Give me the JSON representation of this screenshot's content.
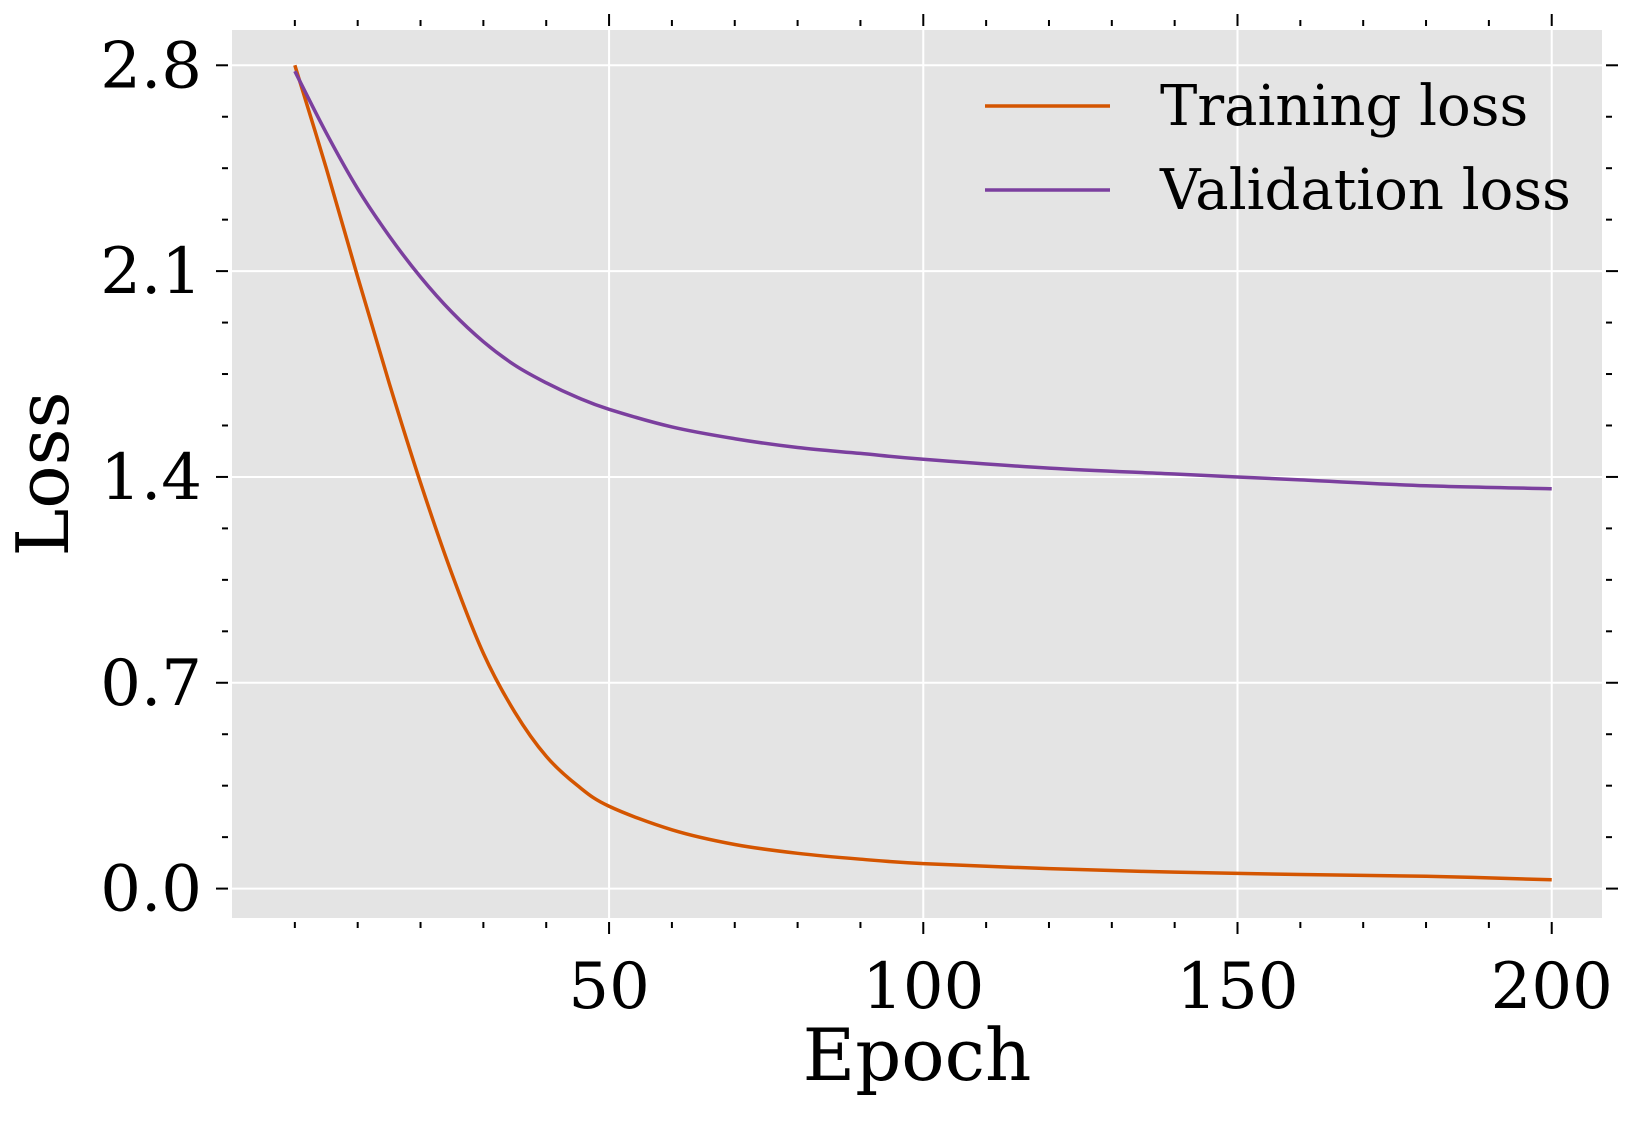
{
  "chart_data": {
    "type": "line",
    "title": "",
    "xlabel": "Epoch",
    "ylabel": "Loss",
    "xlim": [
      -10,
      208
    ],
    "ylim": [
      -0.1,
      2.92
    ],
    "xticks": [
      50,
      100,
      150,
      200
    ],
    "xtick_labels": [
      "50",
      "100",
      "150",
      "200"
    ],
    "yticks": [
      0.0,
      0.7,
      1.4,
      2.1,
      2.8
    ],
    "ytick_labels": [
      "0.0",
      "0.7",
      "1.4",
      "2.1",
      "2.8"
    ],
    "x_minor_ticks": [
      0,
      10,
      20,
      30,
      40,
      60,
      70,
      80,
      90,
      110,
      120,
      130,
      140,
      160,
      170,
      180,
      190
    ],
    "y_minor_ticks": [
      0.175,
      0.35,
      0.525,
      0.875,
      1.05,
      1.225,
      1.575,
      1.75,
      1.925,
      2.275,
      2.45,
      2.625
    ],
    "grid": true,
    "legend_position": "top-right",
    "x": [
      0,
      5,
      10,
      15,
      20,
      25,
      30,
      35,
      40,
      45,
      50,
      60,
      70,
      80,
      90,
      100,
      120,
      140,
      160,
      180,
      200
    ],
    "series": [
      {
        "name": "Training loss",
        "color": "#d45500",
        "values": [
          2.8,
          2.45,
          2.08,
          1.72,
          1.38,
          1.07,
          0.8,
          0.6,
          0.45,
          0.35,
          0.28,
          0.2,
          0.15,
          0.12,
          0.1,
          0.085,
          0.068,
          0.056,
          0.048,
          0.042,
          0.03
        ]
      },
      {
        "name": "Validation loss",
        "color": "#7b3f9e",
        "values": [
          2.78,
          2.57,
          2.38,
          2.22,
          2.08,
          1.96,
          1.86,
          1.78,
          1.72,
          1.67,
          1.63,
          1.57,
          1.53,
          1.5,
          1.48,
          1.46,
          1.43,
          1.41,
          1.39,
          1.37,
          1.36
        ]
      }
    ]
  },
  "colors": {
    "plot_background": "#e4e4e4",
    "grid": "#ffffff",
    "axis_ticks": "#000000"
  }
}
